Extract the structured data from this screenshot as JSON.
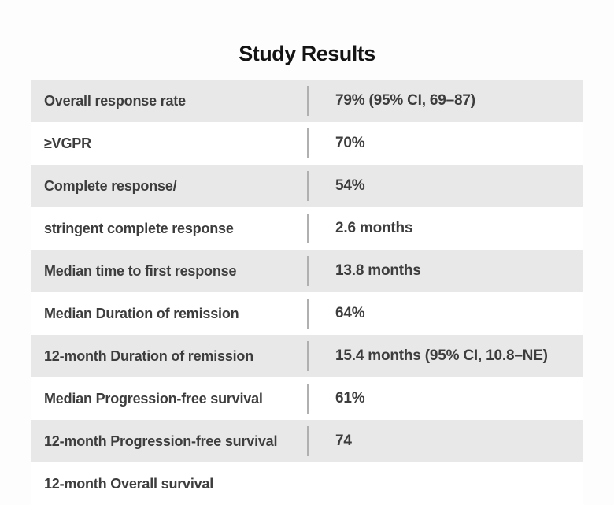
{
  "page": {
    "title": "Study Results"
  },
  "chart_data": {
    "type": "table",
    "title": "Study Results",
    "rows": [
      {
        "label": "Overall response rate",
        "value": "79% (95% CI, 69–87)"
      },
      {
        "label": "≥VGPR",
        "value": "70%"
      },
      {
        "label": "Complete response/",
        "value": "54%"
      },
      {
        "label": "stringent complete response",
        "value": "2.6 months"
      },
      {
        "label": "Median time to first response",
        "value": "13.8 months"
      },
      {
        "label": "Median Duration of remission",
        "value": "64%"
      },
      {
        "label": "12-month Duration of remission",
        "value": "15.4 months (95% CI, 10.8–NE)"
      },
      {
        "label": "Median Progression-free survival",
        "value": "61%"
      },
      {
        "label": "12-month Progression-free survival",
        "value": "74"
      },
      {
        "label": "12-month Overall survival",
        "value": ""
      }
    ],
    "layout": {
      "legend": "none",
      "zebra_striping": true,
      "shaded_rows": "odd",
      "column_divider": true,
      "last_row_clipped": true
    }
  },
  "colors": {
    "row_shaded": "#e8e8e8",
    "row_plain": "#ffffff",
    "text": "#3d3d3d",
    "title_text": "#141414",
    "divider": "#b0b0b0",
    "background": "#fdfdfd"
  }
}
